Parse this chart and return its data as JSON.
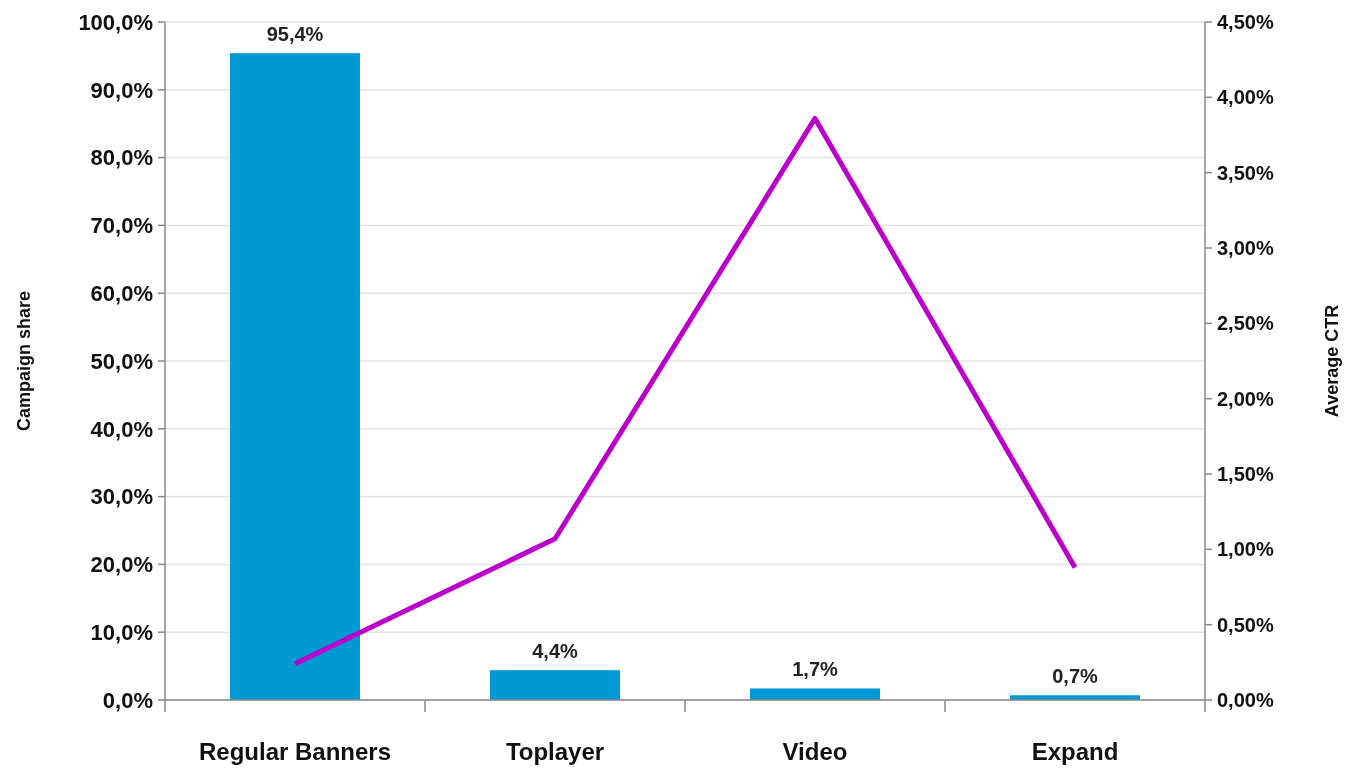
{
  "chart_data": {
    "type": "bar",
    "categories": [
      "Regular Banners",
      "Toplayer",
      "Video",
      "Expand"
    ],
    "series": [
      {
        "color": "#0099d4",
        "values": [
          95.4,
          4.4,
          1.7,
          0.7
        ],
        "value_labels": [
          "95,4%",
          "4,4%",
          "1,7%",
          "0,7%"
        ]
      },
      {
        "type": "line",
        "axis": "y2",
        "color": "#bb00cc",
        "values": [
          0.24,
          1.07,
          3.86,
          0.88
        ]
      }
    ],
    "ylabel": "Campaign share",
    "y2label": "Average CTR",
    "ylim": [
      0,
      100
    ],
    "yticks": [
      {
        "value": 0,
        "label": "0,0%"
      },
      {
        "value": 10,
        "label": "10,0%"
      },
      {
        "value": 20,
        "label": "20,0%"
      },
      {
        "value": 30,
        "label": "30,0%"
      },
      {
        "value": 40,
        "label": "40,0%"
      },
      {
        "value": 50,
        "label": "50,0%"
      },
      {
        "value": 60,
        "label": "60,0%"
      },
      {
        "value": 70,
        "label": "70,0%"
      },
      {
        "value": 80,
        "label": "80,0%"
      },
      {
        "value": 90,
        "label": "90,0%"
      },
      {
        "value": 100,
        "label": "100,0%"
      }
    ],
    "y2lim": [
      0,
      4.5
    ],
    "y2ticks": [
      {
        "value": 0,
        "label": "0,00%"
      },
      {
        "value": 0.5,
        "label": "0,50%"
      },
      {
        "value": 1,
        "label": "1,00%"
      },
      {
        "value": 1.5,
        "label": "1,50%"
      },
      {
        "value": 2,
        "label": "2,00%"
      },
      {
        "value": 2.5,
        "label": "2,50%"
      },
      {
        "value": 3,
        "label": "3,00%"
      },
      {
        "value": 3.5,
        "label": "3,50%"
      },
      {
        "value": 4,
        "label": "4,00%"
      },
      {
        "value": 4.5,
        "label": "4,50%"
      }
    ],
    "grid": "y",
    "marker": "none",
    "line_style": "solid"
  }
}
